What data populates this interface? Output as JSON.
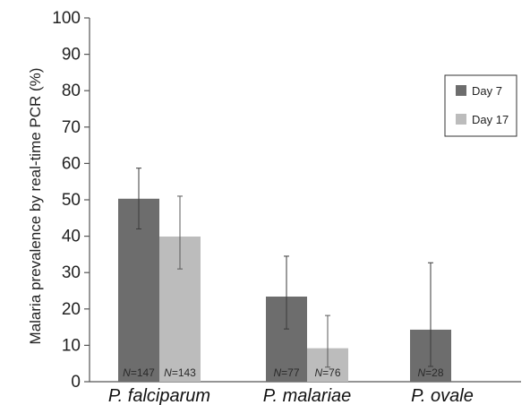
{
  "chart_data": {
    "type": "bar",
    "title": "",
    "xlabel": "",
    "ylabel": "Malaria prevalence by real-time PCR (%)",
    "ylim": [
      0,
      100
    ],
    "yticks": [
      "0",
      "10",
      "20",
      "30",
      "40",
      "50",
      "60",
      "70",
      "80",
      "90",
      "100"
    ],
    "categories": [
      "P. falciparum",
      "P. malariae",
      "P. ovale"
    ],
    "series": [
      {
        "name": "Day 7",
        "color": "#6d6d6d",
        "values": [
          50.3,
          23.4,
          14.3
        ],
        "error_low": [
          42,
          14.5,
          4.2
        ],
        "error_high": [
          58.7,
          34.5,
          32.7
        ],
        "n_labels": [
          "N=147",
          "N=77",
          "N=28"
        ]
      },
      {
        "name": "Day 17",
        "color": "#bcbcbc",
        "values": [
          39.9,
          9.2,
          null
        ],
        "error_low": [
          31,
          4,
          null
        ],
        "error_high": [
          51,
          18.2,
          null
        ],
        "n_labels": [
          "N=143",
          "N=76",
          null
        ]
      }
    ],
    "legend": {
      "position": "top-right",
      "entries": [
        "Day 7",
        "Day 17"
      ]
    },
    "grid": false
  }
}
